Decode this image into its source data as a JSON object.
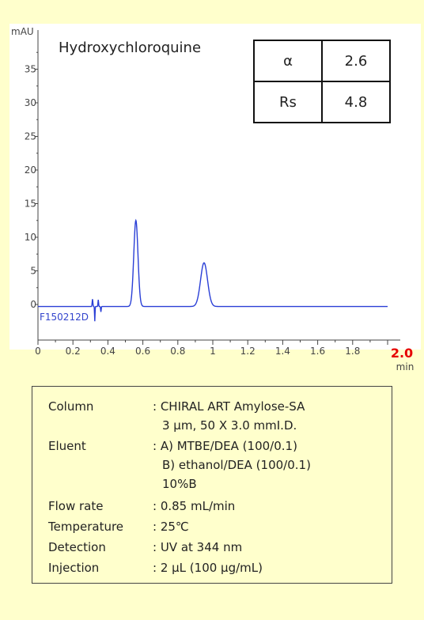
{
  "chart_data": {
    "type": "line",
    "title": "Hydroxychloroquine",
    "ylabel": "mAU",
    "xlabel": "min",
    "xlim": [
      0,
      2.0
    ],
    "ylim": [
      -6,
      40
    ],
    "yticks": [
      0,
      5,
      10,
      15,
      20,
      25,
      30,
      35
    ],
    "xticks": [
      "0",
      "0.2",
      "0.4",
      "0.6",
      "0.8",
      "1",
      "1.2",
      "1.4",
      "1.6",
      "1.8"
    ],
    "xmax_label": "2.0",
    "run_id": "F150212D",
    "grid": false,
    "series": [
      {
        "color": "#2a3fd6",
        "peaks": [
          {
            "rt": 0.56,
            "height": 12.8,
            "width": 0.012
          },
          {
            "rt": 0.95,
            "height": 6.5,
            "width": 0.02
          }
        ],
        "baseline": -0.3
      }
    ]
  },
  "metrics": [
    {
      "name": "α",
      "value": "2.6"
    },
    {
      "name": "Rs",
      "value": "4.8"
    }
  ],
  "conditions": [
    {
      "label": "Column",
      "lines": [
        ": CHIRAL ART Amylose-SA",
        "3 μm, 50 X 3.0 mmI.D."
      ]
    },
    {
      "label": "Eluent",
      "lines": [
        ": A) MTBE/DEA (100/0.1)",
        "B) ethanol/DEA (100/0.1)",
        "10%B"
      ]
    },
    {
      "label": "Flow rate",
      "lines": [
        ": 0.85 mL/min"
      ]
    },
    {
      "label": "Temperature",
      "lines": [
        ": 25℃"
      ]
    },
    {
      "label": "Detection",
      "lines": [
        ": UV at 344 nm"
      ]
    },
    {
      "label": "Injection",
      "lines": [
        ": 2 μL (100 μg/mL)"
      ]
    }
  ]
}
